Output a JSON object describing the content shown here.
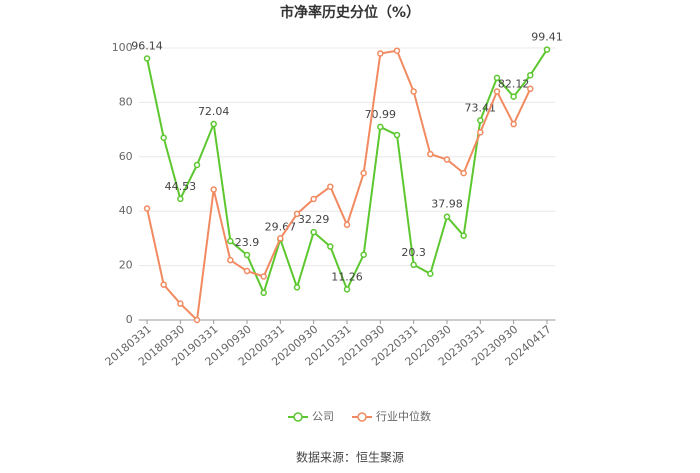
{
  "chart_data": {
    "type": "line",
    "title": "市净率历史分位（%）",
    "source": "数据来源：恒生聚源",
    "categories": [
      "20180331",
      null,
      "20180930",
      null,
      "20190331",
      null,
      "20190930",
      null,
      "20200331",
      null,
      "20200930",
      null,
      "20210331",
      null,
      "20210930",
      null,
      "20220331",
      null,
      "20220930",
      null,
      "20230331",
      null,
      "20230930",
      null,
      "20240417"
    ],
    "series": [
      {
        "name": "公司",
        "color": "#5cc72f",
        "values": [
          96.14,
          67,
          44.53,
          57,
          72.04,
          29,
          23.9,
          10,
          29.67,
          12,
          32.29,
          27,
          11.26,
          24,
          70.99,
          68,
          20.3,
          17,
          37.98,
          31,
          73.41,
          89,
          82.12,
          90,
          99.41
        ]
      },
      {
        "name": "行业中位数",
        "color": "#f28a61",
        "values": [
          41,
          13,
          6,
          0,
          48,
          22,
          18,
          16,
          30,
          39,
          44.5,
          49,
          35,
          54,
          98,
          99,
          84,
          61,
          59,
          54,
          69,
          84,
          72,
          85,
          null
        ]
      }
    ],
    "ylim": [
      0,
      100
    ],
    "yticks": [
      0,
      20,
      40,
      60,
      80,
      100
    ],
    "grid": true
  }
}
